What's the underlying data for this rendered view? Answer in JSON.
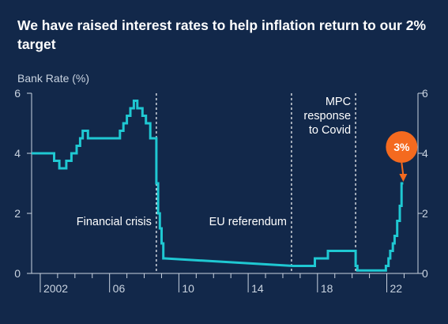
{
  "chart_data": {
    "type": "line",
    "title": "We have raised interest rates to help inflation return to our 2% target",
    "ylabel": "Bank Rate (%)",
    "xlabel": "",
    "xlim": [
      2001.5,
      2023.8
    ],
    "ylim": [
      0,
      6
    ],
    "yticks": [
      0,
      2,
      4,
      6
    ],
    "yticks_right": [
      0,
      2,
      4,
      6
    ],
    "xticks": [
      {
        "value": 2002,
        "label": "2002"
      },
      {
        "value": 2006,
        "label": "06"
      },
      {
        "value": 2010,
        "label": "10"
      },
      {
        "value": 2014,
        "label": "14"
      },
      {
        "value": 2018,
        "label": "18"
      },
      {
        "value": 2022,
        "label": "22"
      }
    ],
    "grid": false,
    "colors": {
      "background": "#12284a",
      "line": "#1fc8d2",
      "axis": "#c9d3e0",
      "badge": "#f46a1f"
    },
    "series": [
      {
        "name": "",
        "x": [
          2001.5,
          2002.8,
          2002.8,
          2003.1,
          2003.1,
          2003.5,
          2003.5,
          2003.8,
          2003.8,
          2004.1,
          2004.1,
          2004.3,
          2004.3,
          2004.45,
          2004.45,
          2004.6,
          2004.6,
          2004.75,
          2004.75,
          2005.6,
          2005.6,
          2006.6,
          2006.6,
          2006.8,
          2006.8,
          2007.0,
          2007.0,
          2007.2,
          2007.2,
          2007.4,
          2007.4,
          2007.6,
          2007.6,
          2007.9,
          2007.9,
          2008.1,
          2008.1,
          2008.35,
          2008.35,
          2008.7,
          2008.7,
          2008.8,
          2008.8,
          2008.9,
          2008.9,
          2009.0,
          2009.0,
          2009.1,
          2009.1,
          2009.2,
          2009.2,
          2016.6,
          2016.6,
          2017.85,
          2017.85,
          2018.6,
          2018.6,
          2020.2,
          2020.2,
          2020.3,
          2020.3,
          2021.95,
          2021.95,
          2022.1,
          2022.1,
          2022.2,
          2022.2,
          2022.35,
          2022.35,
          2022.45,
          2022.45,
          2022.6,
          2022.6,
          2022.75,
          2022.75,
          2022.85,
          2022.85,
          2022.95,
          2022.95
        ],
        "y": [
          4.0,
          4.0,
          3.75,
          3.75,
          3.5,
          3.5,
          3.75,
          3.75,
          4.0,
          4.0,
          4.25,
          4.25,
          4.5,
          4.5,
          4.75,
          4.75,
          4.75,
          4.75,
          4.5,
          4.5,
          4.5,
          4.5,
          4.75,
          4.75,
          5.0,
          5.0,
          5.25,
          5.25,
          5.5,
          5.5,
          5.75,
          5.75,
          5.5,
          5.5,
          5.25,
          5.25,
          5.0,
          5.0,
          4.5,
          4.5,
          3.0,
          3.0,
          2.0,
          2.0,
          1.5,
          1.5,
          1.0,
          1.0,
          0.5,
          0.5,
          0.5,
          0.25,
          0.25,
          0.25,
          0.5,
          0.5,
          0.75,
          0.75,
          0.25,
          0.25,
          0.1,
          0.1,
          0.25,
          0.25,
          0.5,
          0.5,
          0.75,
          0.75,
          1.0,
          1.0,
          1.25,
          1.25,
          1.75,
          1.75,
          2.25,
          2.25,
          3.0,
          3.0,
          3.0
        ]
      }
    ],
    "annotations": [
      {
        "kind": "vline",
        "x": 2008.7,
        "label": [
          "Financial crisis"
        ],
        "label_side": "left"
      },
      {
        "kind": "vline",
        "x": 2016.5,
        "label": [
          "EU referendum"
        ],
        "label_side": "left"
      },
      {
        "kind": "vline",
        "x": 2020.2,
        "label": [
          "MPC",
          "response",
          "to Covid"
        ],
        "label_side": "left"
      }
    ],
    "callout": {
      "x": 2022.95,
      "y": 3.0,
      "label": "3%"
    }
  }
}
